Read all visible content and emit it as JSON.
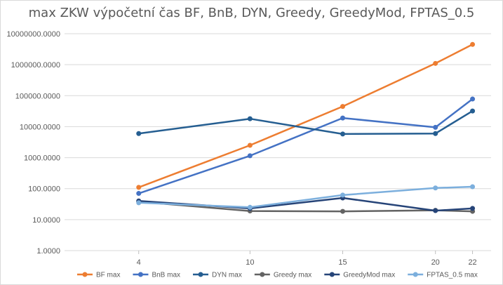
{
  "chart_data": {
    "type": "line",
    "title": "max ZKW výpočetní čas BF, BnB, DYN, Greedy, GreedyMod, FPTAS_0.5",
    "xlabel": "",
    "ylabel": "",
    "y_scale": "log",
    "ylim": [
      1,
      10000000
    ],
    "grid": true,
    "legend_position": "bottom",
    "categories": [
      "4",
      "10",
      "15",
      "20",
      "22"
    ],
    "x": [
      4,
      10,
      15,
      20,
      22
    ],
    "y_tick_labels": [
      "1.0000",
      "10.0000",
      "100.0000",
      "1000.0000",
      "10000.0000",
      "100000.0000",
      "1000000.0000",
      "10000000.0000"
    ],
    "y_tick_values": [
      1,
      10,
      100,
      1000,
      10000,
      100000,
      1000000,
      10000000
    ],
    "series": [
      {
        "name": "BF max",
        "color": "#ED7D31",
        "values": [
          110,
          2500,
          45000,
          1100000,
          4500000
        ]
      },
      {
        "name": "BnB max",
        "color": "#4472C4",
        "values": [
          70,
          1150,
          19000,
          9500,
          78000
        ]
      },
      {
        "name": "DYN max",
        "color": "#255E91",
        "values": [
          6000,
          18000,
          5800,
          6000,
          32000
        ]
      },
      {
        "name": "Greedy max",
        "color": "#636363",
        "values": [
          38,
          19,
          18.5,
          20,
          18.5
        ]
      },
      {
        "name": "GreedyMod max",
        "color": "#264478",
        "values": [
          40,
          23,
          50,
          19.5,
          23
        ]
      },
      {
        "name": "FPTAS_0.5 max",
        "color": "#7CAFDD",
        "values": [
          35,
          25,
          62,
          105,
          115
        ]
      }
    ]
  }
}
